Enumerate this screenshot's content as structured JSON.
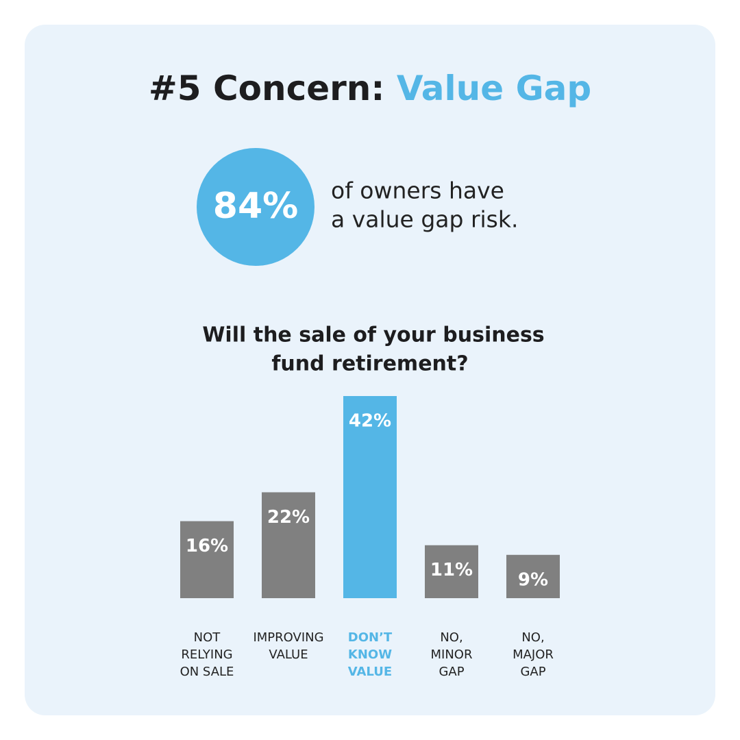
{
  "title_parts": [
    "#5 Concern:",
    "Value Gap"
  ],
  "highlight": {
    "stat": "84%",
    "text": [
      "of owners have",
      "a value gap risk."
    ]
  },
  "chart_data": {
    "type": "bar",
    "title": [
      "Will the sale of your business",
      "fund retirement?"
    ],
    "categories": [
      [
        "NOT",
        "RELYING",
        "ON SALE"
      ],
      [
        "IMPROVING",
        "VALUE"
      ],
      [
        "DON’T",
        "KNOW",
        "VALUE"
      ],
      [
        "NO,",
        "MINOR",
        "GAP"
      ],
      [
        "NO,",
        "MAJOR",
        "GAP"
      ]
    ],
    "values": [
      16,
      22,
      42,
      11,
      9
    ],
    "value_labels": [
      "16%",
      "22%",
      "42%",
      "11%",
      "9%"
    ],
    "colors": [
      "#808080",
      "#808080",
      "#54b6e6",
      "#808080",
      "#808080"
    ],
    "category_label_colors": [
      "#222222",
      "#222222",
      "#54b6e6",
      "#222222",
      "#222222"
    ]
  }
}
